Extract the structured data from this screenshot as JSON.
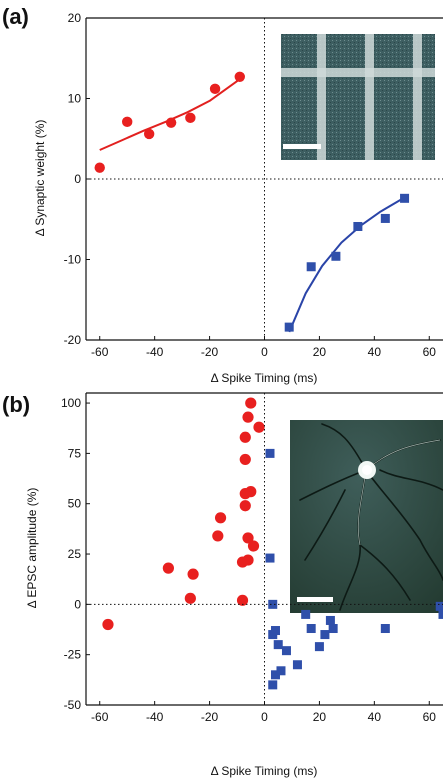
{
  "colors": {
    "red": "#e8201f",
    "blue": "#2f4faa",
    "fitRed": "#e2201f",
    "fitBlue": "#2a44a8"
  },
  "chart_data": [
    {
      "panel": "(a)",
      "type": "scatter",
      "xlabel": "Δ Spike Timing (ms)",
      "ylabel": "Δ Synaptic weight (%)",
      "xlim": [
        -65,
        65
      ],
      "ylim": [
        -20,
        20
      ],
      "xticks": [
        -60,
        -40,
        -20,
        0,
        20,
        40,
        60
      ],
      "yticks": [
        -20,
        -10,
        0,
        10,
        20
      ],
      "xtick_labels": [
        "-60",
        "-40",
        "-20",
        "0",
        "20",
        "40",
        "60"
      ],
      "ytick_labels": [
        "-20",
        "-10",
        "0",
        "10",
        "20"
      ],
      "series": [
        {
          "marker": "circle",
          "color": "#e8201f",
          "x": [
            -60,
            -50,
            -42,
            -34,
            -27,
            -18,
            -9
          ],
          "y": [
            1.4,
            7.1,
            5.6,
            7.0,
            7.6,
            11.2,
            12.7
          ]
        },
        {
          "marker": "square",
          "color": "#2f4faa",
          "x": [
            9,
            17,
            26,
            34,
            44,
            51
          ],
          "y": [
            -18.4,
            -10.9,
            -9.6,
            -5.9,
            -4.9,
            -2.4
          ]
        }
      ],
      "fits": [
        {
          "color": "#e2201f",
          "x": [
            -60,
            -52,
            -44,
            -36,
            -28,
            -20,
            -9
          ],
          "y": [
            3.6,
            4.8,
            6.0,
            7.1,
            8.3,
            9.7,
            12.4
          ]
        },
        {
          "color": "#2a44a8",
          "x": [
            9,
            15,
            21,
            28,
            35,
            42,
            51
          ],
          "y": [
            -19.0,
            -14.2,
            -10.8,
            -7.9,
            -5.8,
            -4.1,
            -2.3
          ]
        }
      ],
      "inset": "electrode crossbar micrograph",
      "scale_bar": true
    },
    {
      "panel": "(b)",
      "type": "scatter",
      "xlabel": "Δ Spike Timing (ms)",
      "ylabel": "Δ EPSC amplitude (%)",
      "xlim": [
        -65,
        65
      ],
      "ylim": [
        -50,
        105
      ],
      "xticks": [
        -60,
        -40,
        -20,
        0,
        20,
        40,
        60
      ],
      "yticks": [
        -50,
        -25,
        0,
        25,
        50,
        75,
        100
      ],
      "xtick_labels": [
        "-60",
        "-40",
        "-20",
        "0",
        "20",
        "40",
        "60"
      ],
      "ytick_labels": [
        "-50",
        "-25",
        "0",
        "25",
        "50",
        "75",
        "100"
      ],
      "series": [
        {
          "marker": "circle",
          "color": "#e8201f",
          "x": [
            -57,
            -35,
            -27,
            -26,
            -17,
            -16,
            -8,
            -8,
            -7,
            -7,
            -7,
            -7,
            -6,
            -6,
            -6,
            -5,
            -5,
            -4,
            -2
          ],
          "y": [
            -10,
            18,
            3,
            15,
            34,
            43,
            2,
            21,
            49,
            55,
            72,
            83,
            93,
            22,
            33,
            56,
            100,
            29,
            88
          ]
        },
        {
          "marker": "square",
          "color": "#2f4faa",
          "x": [
            2,
            2,
            3,
            3,
            3,
            4,
            4,
            5,
            6,
            8,
            12,
            15,
            17,
            20,
            22,
            24,
            25,
            44,
            64,
            65
          ],
          "y": [
            75,
            23,
            0,
            -15,
            -40,
            -13,
            -35,
            -20,
            -33,
            -23,
            -30,
            -5,
            -12,
            -21,
            -15,
            -8,
            -12,
            -12,
            -1,
            -5
          ]
        }
      ],
      "inset": "cultured neuron micrograph",
      "scale_bar": true
    }
  ]
}
